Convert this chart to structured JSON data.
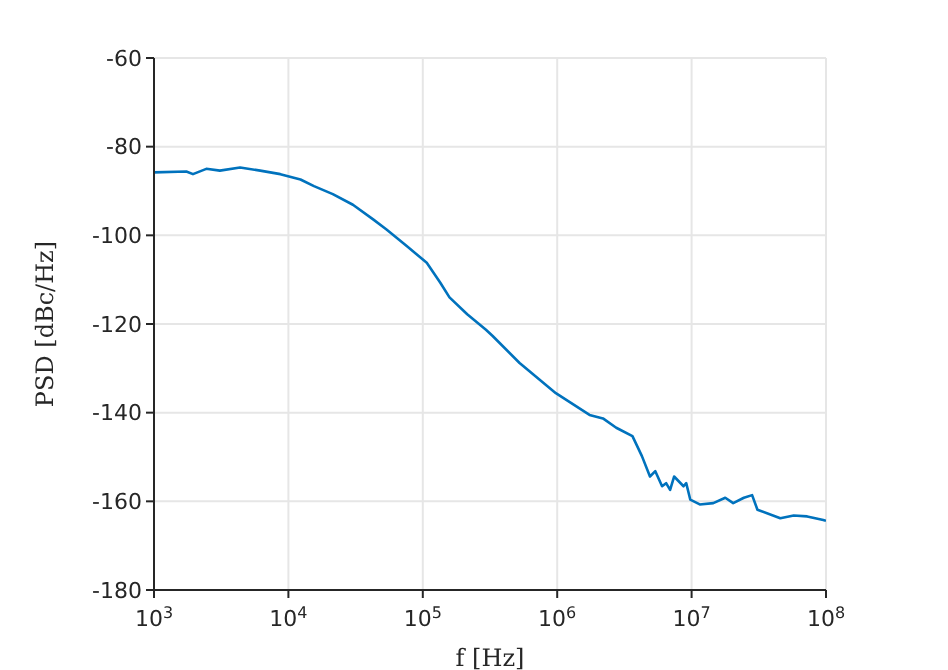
{
  "chart_data": {
    "type": "line",
    "xlabel": "f [Hz]",
    "ylabel": "PSD [dBc/Hz]",
    "log": "x",
    "grid": true,
    "marker": "none",
    "line_style": "solid",
    "xlim": [
      1000,
      100000000
    ],
    "ylim": [
      -180,
      -60
    ],
    "xticks": [
      {
        "value": 1000,
        "label": "10$^{3}$"
      },
      {
        "value": 10000,
        "label": "10$^{4}$"
      },
      {
        "value": 100000,
        "label": "10$^{5}$"
      },
      {
        "value": 1000000,
        "label": "10$^{6}$"
      },
      {
        "value": 10000000,
        "label": "10$^{7}$"
      },
      {
        "value": 100000000,
        "label": "10$^{8}$"
      }
    ],
    "yticks": [
      -180,
      -160,
      -140,
      -120,
      -100,
      -80,
      -60
    ],
    "series": [
      {
        "color": "#0072bd",
        "x": [
          1000,
          1740,
          1950,
          2450,
          3090,
          4370,
          6170,
          8710,
          12300,
          15500,
          21400,
          30200,
          42700,
          53700,
          75900,
          107000,
          135000,
          158000,
          214000,
          295000,
          331000,
          525000,
          977000,
          1740000,
          2190000,
          2750000,
          3630000,
          4270000,
          4900000,
          5370000,
          6030000,
          6460000,
          6920000,
          7410000,
          8710000,
          9120000,
          9770000,
          11500000,
          14500000,
          17800000,
          20400000,
          24500000,
          28200000,
          30900000,
          45700000,
          57500000,
          72400000,
          95500000,
          100000000
        ],
        "values": [
          -85.8,
          -85.6,
          -86.2,
          -85,
          -85.4,
          -84.7,
          -85.4,
          -86.2,
          -87.4,
          -88.9,
          -90.7,
          -93.1,
          -96.4,
          -98.7,
          -102.4,
          -106.2,
          -110.7,
          -114,
          -117.8,
          -121.3,
          -122.7,
          -128.8,
          -135.6,
          -140.5,
          -141.3,
          -143.4,
          -145.3,
          -149.8,
          -154.4,
          -153.2,
          -156.6,
          -155.9,
          -157.4,
          -154.4,
          -156.6,
          -155.9,
          -159.6,
          -160.7,
          -160.4,
          -159.2,
          -160.4,
          -159.2,
          -158.6,
          -161.9,
          -163.8,
          -163.2,
          -163.4,
          -164.2,
          -164.4
        ]
      }
    ]
  }
}
